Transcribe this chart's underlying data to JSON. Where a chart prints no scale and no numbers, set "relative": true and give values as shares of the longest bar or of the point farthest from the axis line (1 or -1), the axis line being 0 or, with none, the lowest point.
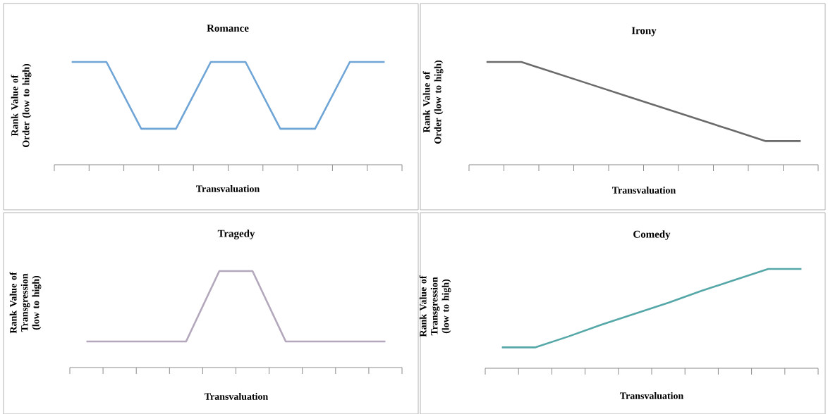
{
  "chart_data": [
    {
      "type": "line",
      "title": "Romance",
      "xlabel": "Transvaluation",
      "ylabel": "Rank Value of Order (low to high)",
      "relative": true,
      "color": "#6fa5d6",
      "categories": [
        null,
        null,
        null,
        null,
        null,
        null,
        null,
        null,
        null,
        null
      ],
      "values": [
        1,
        1,
        0.35,
        0.35,
        1,
        1,
        0.35,
        0.35,
        1,
        1
      ]
    },
    {
      "type": "line",
      "title": "Irony",
      "xlabel": "Transvaluation",
      "ylabel": "Rank Value of Order (low to high)",
      "relative": true,
      "color": "#6b6b6b",
      "categories": [
        null,
        null,
        null,
        null,
        null,
        null,
        null,
        null,
        null,
        null
      ],
      "values": [
        1,
        1,
        0.89,
        0.78,
        0.67,
        0.56,
        0.45,
        0.34,
        0.23,
        0.23
      ]
    },
    {
      "type": "line",
      "title": "Tragedy",
      "xlabel": "Transvaluation",
      "ylabel": "Rank Value of Transgression (low to high)",
      "relative": true,
      "color": "#b3a7bb",
      "categories": [
        null,
        null,
        null,
        null,
        null,
        null,
        null,
        null,
        null,
        null
      ],
      "values": [
        0.27,
        0.27,
        0.27,
        0.27,
        1,
        1,
        0.27,
        0.27,
        0.27,
        0.27
      ]
    },
    {
      "type": "line",
      "title": "Comedy",
      "xlabel": "Transvaluation",
      "ylabel": "Rank Value of Transgression (low to high)",
      "relative": true,
      "color": "#55a7a8",
      "categories": [
        null,
        null,
        null,
        null,
        null,
        null,
        null,
        null,
        null,
        null
      ],
      "values": [
        0.21,
        0.21,
        0.32,
        0.44,
        0.55,
        0.66,
        0.78,
        0.89,
        1,
        1
      ]
    }
  ]
}
